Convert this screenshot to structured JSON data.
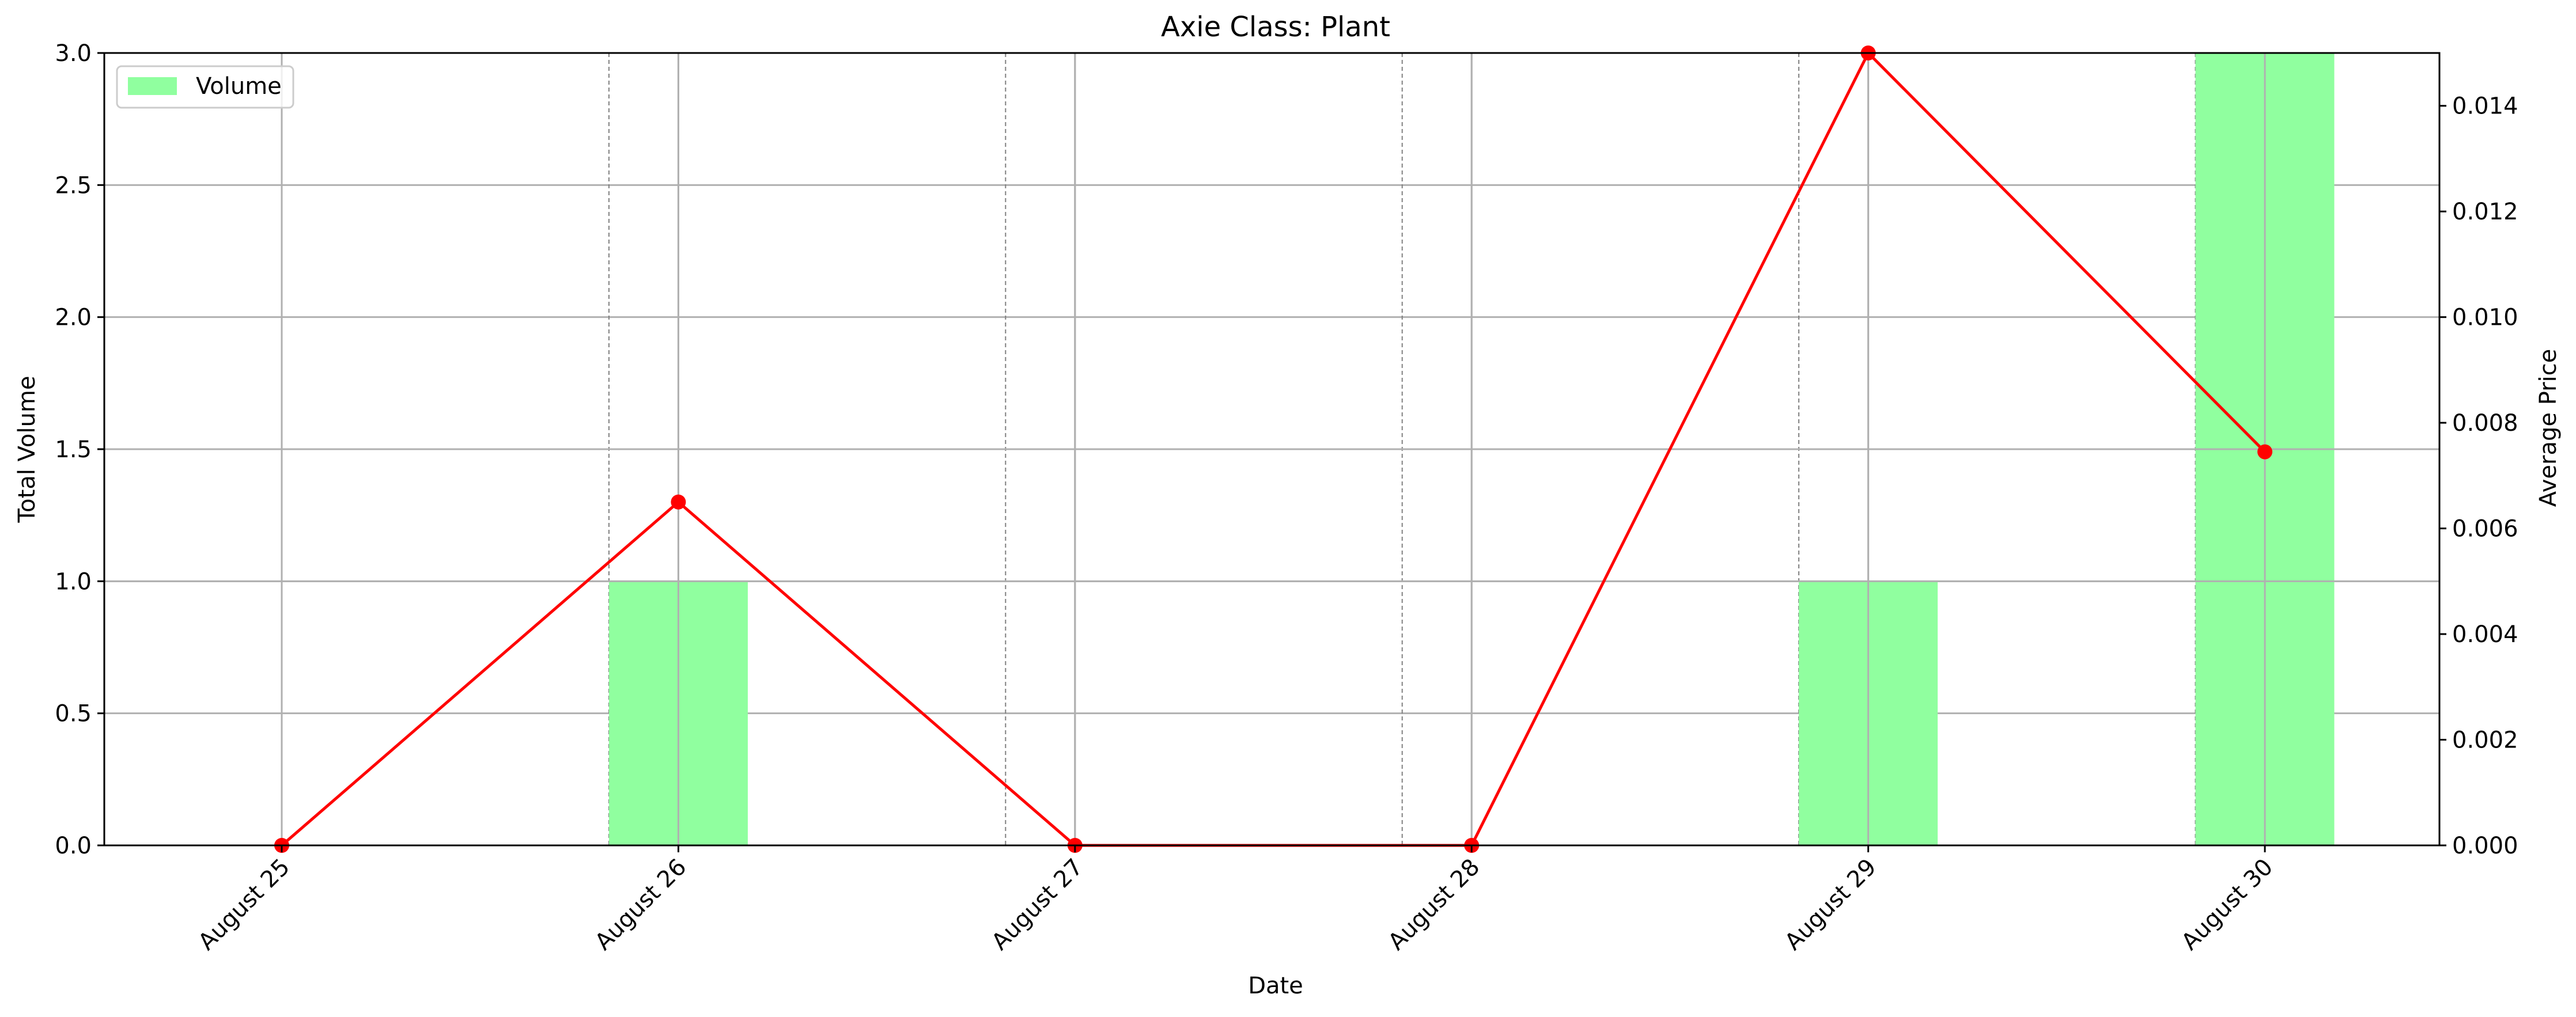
{
  "chart_data": {
    "type": "bar",
    "title": "Axie Class: Plant",
    "xlabel": "Date",
    "ylabel_left": "Total Volume",
    "ylabel_right": "Average Price",
    "categories": [
      "August 25",
      "August 26",
      "August 27",
      "August 28",
      "August 29",
      "August 30"
    ],
    "series": [
      {
        "name": "Volume",
        "kind": "bar",
        "axis": "left",
        "values": [
          0,
          1,
          0,
          0,
          1,
          3
        ]
      },
      {
        "kind": "line",
        "axis": "right",
        "values": [
          0,
          0.0065,
          0,
          0,
          0.015,
          0.00745
        ]
      }
    ],
    "ylim_left": [
      0,
      3.0
    ],
    "ylim_right": [
      0,
      0.015
    ],
    "yticks_left": [
      "0.0",
      "0.5",
      "1.0",
      "1.5",
      "2.0",
      "2.5",
      "3.0"
    ],
    "yticks_right": [
      "0.000",
      "0.002",
      "0.004",
      "0.006",
      "0.008",
      "0.010",
      "0.012",
      "0.014"
    ],
    "grid": true,
    "legend_position": "upper-left",
    "colors": {
      "bar": "#90ff9f",
      "line": "#ff0000",
      "grid": "#b0b0b0"
    }
  }
}
